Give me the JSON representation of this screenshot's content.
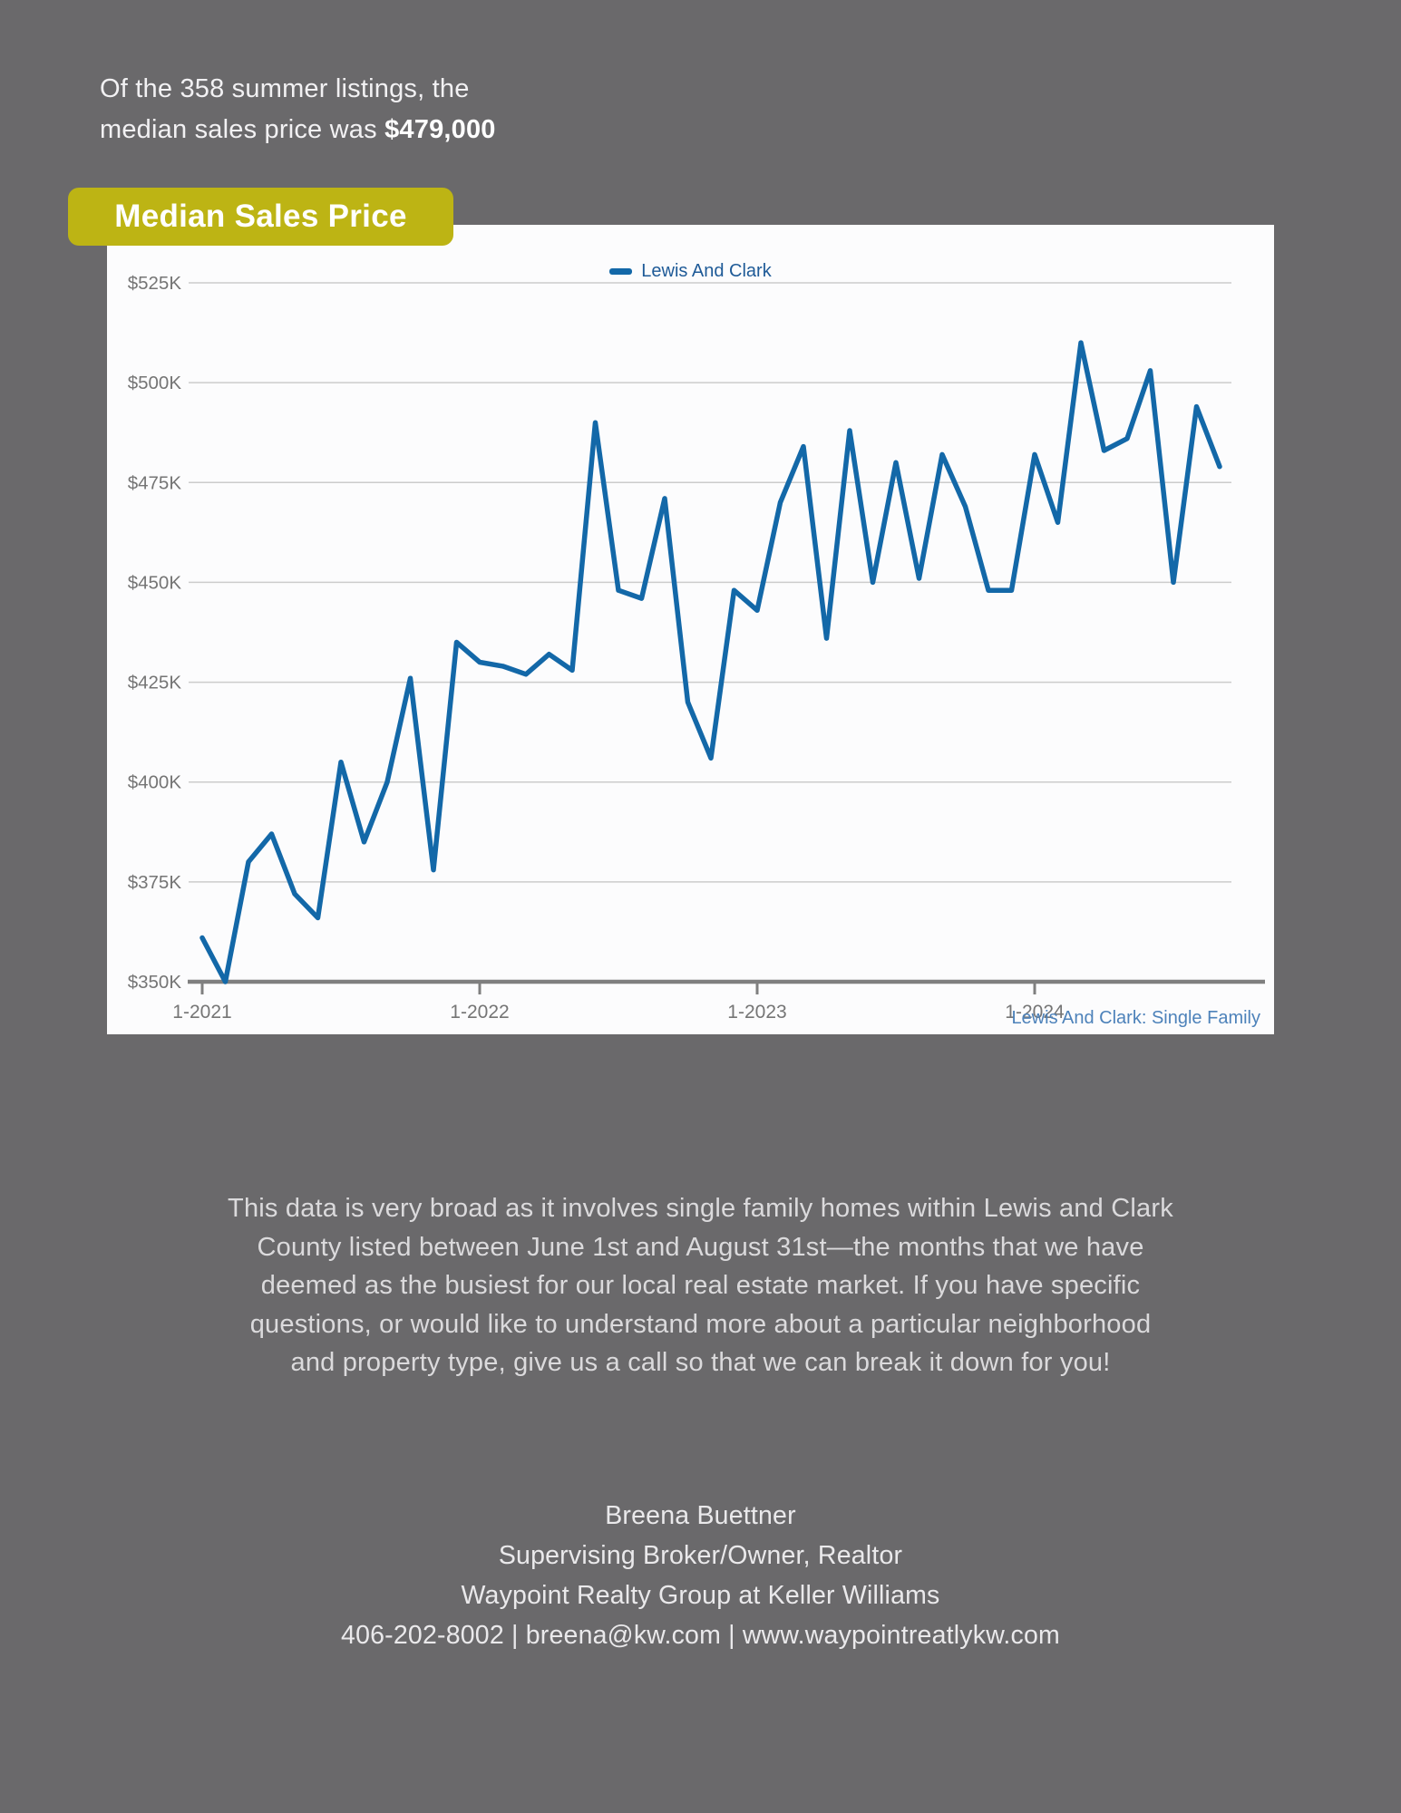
{
  "page": {
    "background_color": "#6a696b"
  },
  "intro": {
    "line1": "Of the 358 summer listings, the",
    "line2_prefix": "median sales price was ",
    "line2_value": "$479,000",
    "listing_count": 358,
    "median_price": "$479,000"
  },
  "badge": {
    "label": "Median Sales Price",
    "background_color": "#bdb414",
    "text_color": "#ffffff"
  },
  "chart": {
    "legend_label": "Lewis And Clark",
    "caption": "Lewis And Clark: Single Family",
    "colors": {
      "line": "#1368a8",
      "legend_text": "#1e5a97",
      "caption_text": "#4d82ba",
      "gridline": "#cccccc",
      "axis": "#7f7f7f",
      "tick_label": "#757575"
    }
  },
  "chart_data": {
    "type": "line",
    "title": "Median Sales Price",
    "legend": [
      "Lewis And Clark"
    ],
    "legend_position": "top-center",
    "grid": "horizontal",
    "x_interval": "monthly",
    "x_start_month": "1-2021",
    "x_end_month": "9-2024",
    "x_tick_labels": [
      "1-2021",
      "1-2022",
      "1-2023",
      "1-2024"
    ],
    "x_tick_months": [
      0,
      12,
      24,
      36
    ],
    "ylim": [
      350,
      525
    ],
    "y_ticks": [
      350,
      375,
      400,
      425,
      450,
      475,
      500,
      525
    ],
    "y_tick_labels": [
      "$350K",
      "$375K",
      "$400K",
      "$425K",
      "$450K",
      "$475K",
      "$500K",
      "$525K"
    ],
    "y_unit": "USD thousands",
    "series": [
      {
        "name": "Lewis And Clark",
        "values": [
          361,
          350,
          380,
          387,
          372,
          366,
          405,
          385,
          400,
          426,
          378,
          435,
          430,
          429,
          427,
          432,
          428,
          490,
          448,
          446,
          471,
          420,
          406,
          448,
          443,
          470,
          484,
          436,
          488,
          450,
          480,
          451,
          482,
          469,
          448,
          448,
          482,
          465,
          510,
          483,
          486,
          503,
          450,
          494,
          479
        ]
      }
    ]
  },
  "body_text_lines": [
    "This data is very broad as it involves single family homes within Lewis and Clark",
    "County listed between June 1st and August 31st—the months that we have",
    "deemed as the busiest for our local real estate market. If you have specific",
    "questions, or would like to understand more about a particular neighborhood",
    "and property type, give us a call so that we can break it down for you!"
  ],
  "footer": {
    "name": "Breena Buettner",
    "title": "Supervising Broker/Owner, Realtor",
    "company": "Waypoint Realty Group at Keller Williams",
    "contact": "406-202-8002 | breena@kw.com | www.waypointreatlykw.com"
  }
}
